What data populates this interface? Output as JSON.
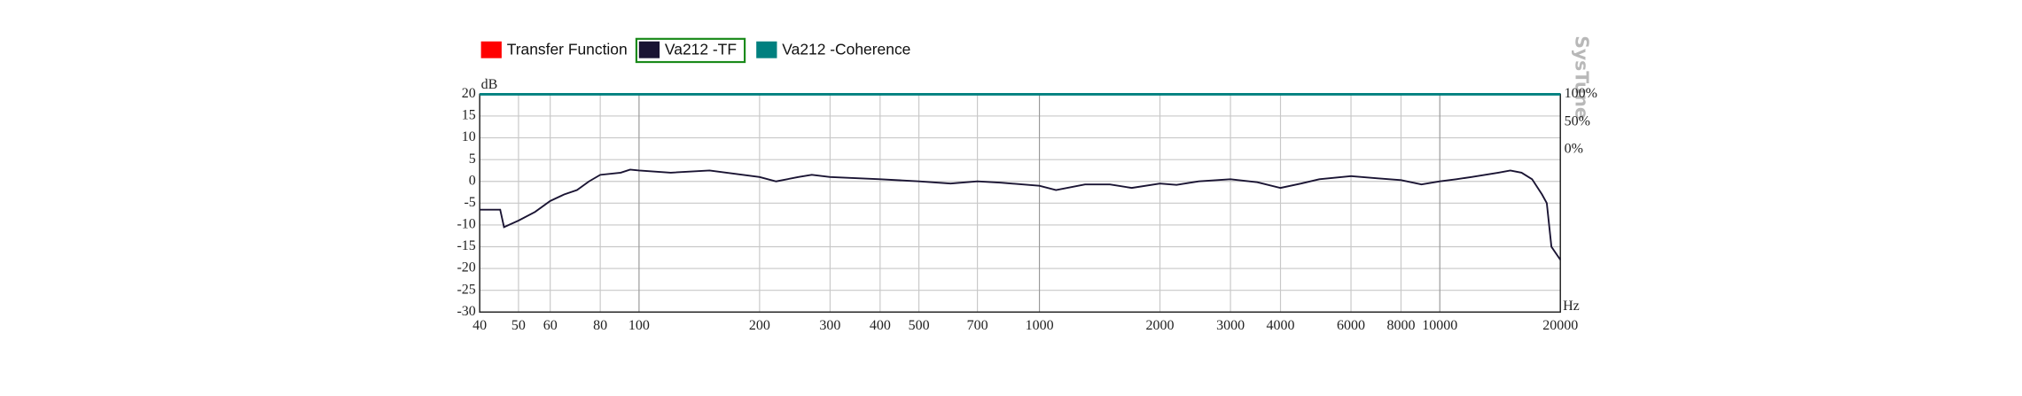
{
  "chart_data": {
    "type": "line",
    "y_axis_label": "dB",
    "x_axis_label": "Hz",
    "watermark": "SysTune",
    "x_scale": "log",
    "grid": true,
    "xlim": [
      40,
      20000
    ],
    "xticks": [
      40,
      50,
      60,
      80,
      100,
      200,
      300,
      400,
      500,
      700,
      1000,
      2000,
      3000,
      4000,
      6000,
      8000,
      10000,
      20000
    ],
    "ylim": [
      -30,
      20
    ],
    "yticks": [
      20,
      15,
      10,
      5,
      0,
      -5,
      -10,
      -15,
      -20,
      -25,
      -30
    ],
    "y2lim": [
      -293,
      100
    ],
    "y2ticks": [
      {
        "value": 100,
        "label": "100%"
      },
      {
        "value": 50,
        "label": "50%"
      },
      {
        "value": 0,
        "label": "0%"
      }
    ],
    "series": [
      {
        "name": "Transfer Function",
        "color": "#ff0000"
      },
      {
        "name": "Va212 -TF",
        "color": "#1a1433",
        "x": [
          40,
          45,
          46,
          50,
          55,
          60,
          65,
          70,
          75,
          80,
          90,
          95,
          100,
          120,
          150,
          200,
          220,
          250,
          270,
          300,
          400,
          500,
          600,
          700,
          800,
          1000,
          1100,
          1300,
          1500,
          1700,
          2000,
          2200,
          2500,
          3000,
          3500,
          4000,
          4500,
          5000,
          6000,
          7000,
          8000,
          9000,
          10000,
          11000,
          12000,
          14000,
          15000,
          16000,
          17000,
          18000,
          18500,
          19000,
          20000
        ],
        "values": [
          -6.5,
          -6.5,
          -10.5,
          -9,
          -7,
          -4.5,
          -3,
          -2,
          0,
          1.5,
          2,
          2.7,
          2.5,
          2,
          2.5,
          1,
          0,
          1,
          1.5,
          1,
          0.5,
          0,
          -0.5,
          0,
          -0.3,
          -1,
          -2,
          -0.7,
          -0.7,
          -1.5,
          -0.5,
          -0.8,
          0,
          0.5,
          -0.2,
          -1.5,
          -0.5,
          0.5,
          1.2,
          0.7,
          0.3,
          -0.7,
          0,
          0.5,
          1,
          2,
          2.5,
          2,
          0.5,
          -3,
          -5,
          -15,
          -18
        ]
      },
      {
        "name": "Va212 -Coherence",
        "color": "#00807f",
        "axis": "y2",
        "x": [
          40,
          20000
        ],
        "values": [
          100,
          100
        ]
      }
    ]
  }
}
